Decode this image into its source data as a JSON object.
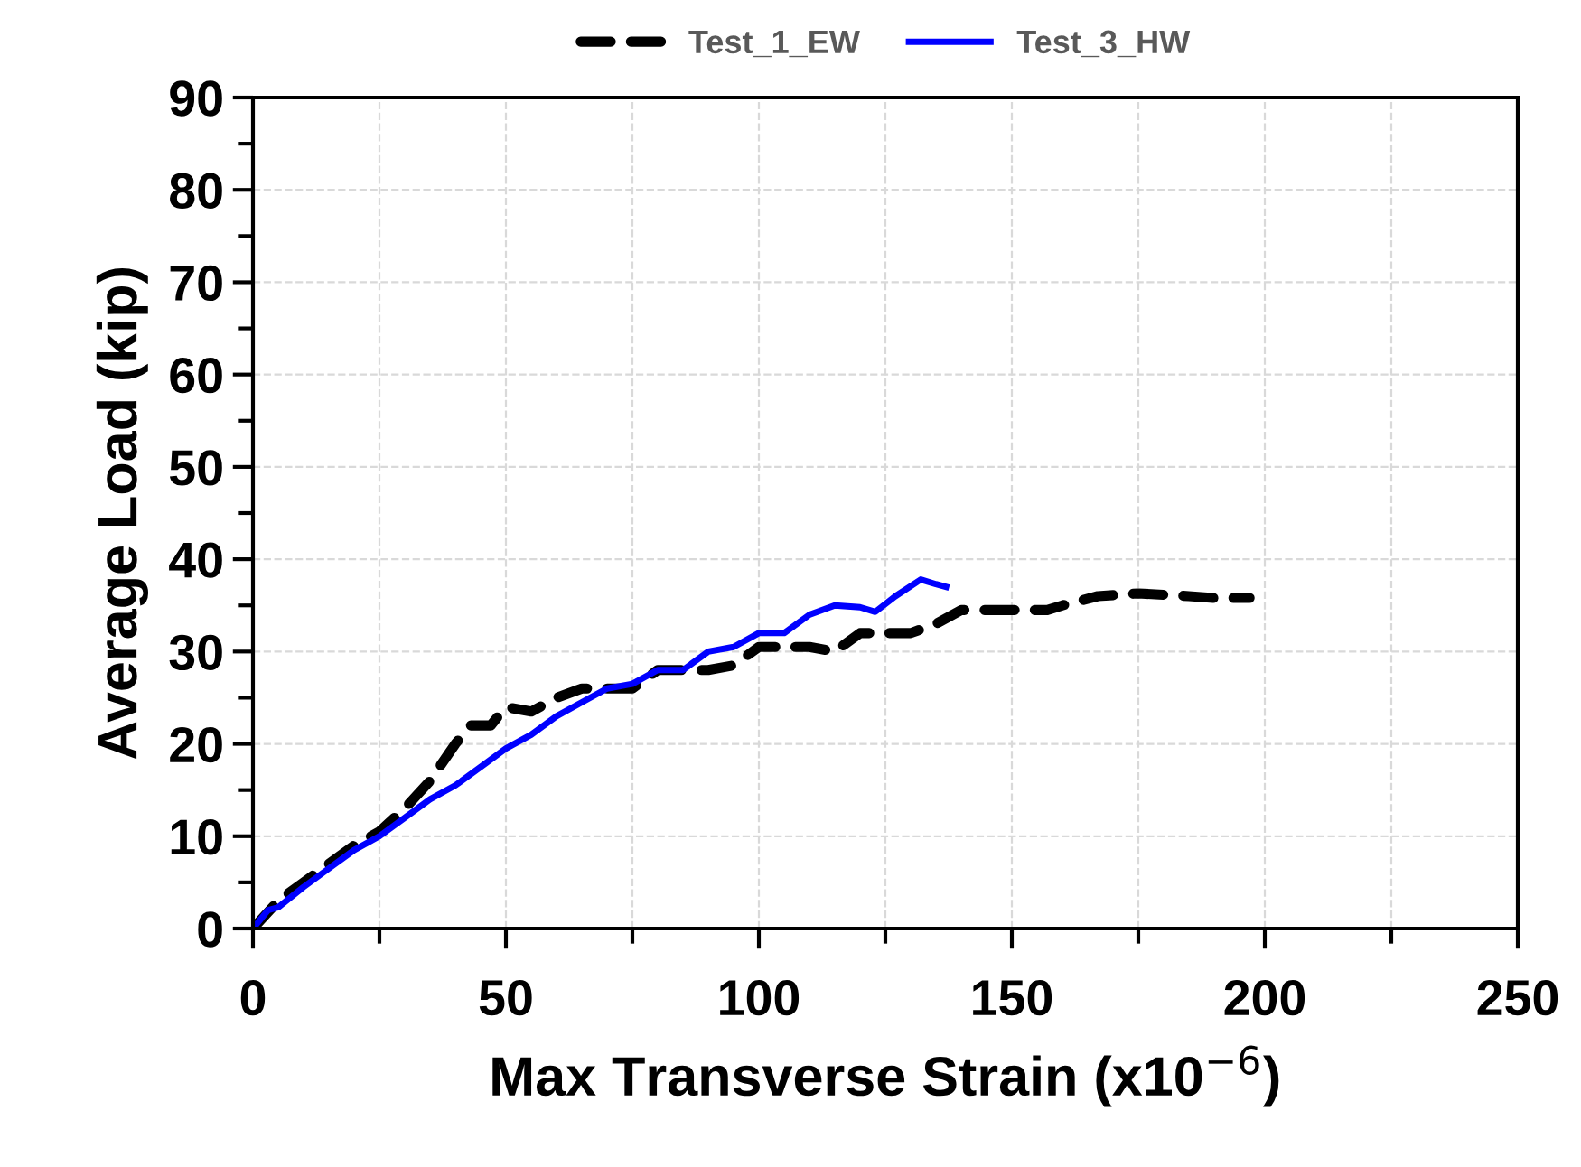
{
  "chart_data": {
    "type": "line",
    "xlabel": "Max Transverse Strain (x10$^{−6}$)",
    "ylabel": "Average Load (kip)",
    "xlim": [
      0,
      250
    ],
    "ylim": [
      0,
      90
    ],
    "xticks": [
      0,
      {
        "value": 25,
        "label": null
      },
      50,
      {
        "value": 75,
        "label": null
      },
      100,
      {
        "value": 125,
        "label": null
      },
      150,
      {
        "value": 175,
        "label": null
      },
      200,
      {
        "value": 225,
        "label": null
      },
      250
    ],
    "yticks": [
      0,
      {
        "value": 5,
        "label": null
      },
      10,
      {
        "value": 15,
        "label": null
      },
      20,
      {
        "value": 25,
        "label": null
      },
      30,
      {
        "value": 35,
        "label": null
      },
      40,
      {
        "value": 45,
        "label": null
      },
      50,
      {
        "value": 55,
        "label": null
      },
      60,
      {
        "value": 65,
        "label": null
      },
      70,
      {
        "value": 75,
        "label": null
      },
      80,
      {
        "value": 85,
        "label": null
      },
      90
    ],
    "grid": true,
    "legend": "top",
    "series": [
      {
        "name": "Test_1_EW",
        "color": "#000000",
        "line_style": "dashed",
        "x": [
          0,
          5,
          10,
          15,
          20,
          25,
          30,
          35,
          40,
          43,
          47,
          50,
          55,
          60,
          65,
          72,
          75,
          80,
          85,
          90,
          95,
          100,
          110,
          115,
          120,
          130,
          135,
          140,
          150,
          157,
          160,
          167,
          175,
          185,
          190,
          197
        ],
        "values": [
          0,
          3,
          5,
          7,
          9,
          10.5,
          13,
          16,
          20,
          22,
          22,
          24,
          23.5,
          25,
          26,
          26,
          26,
          28,
          28,
          28,
          28.5,
          30.5,
          30.5,
          30,
          32,
          32,
          33,
          34.5,
          34.5,
          34.5,
          35,
          36,
          36.3,
          36,
          35.8,
          35.8
        ]
      },
      {
        "name": "Test_3_HW",
        "color": "#0000ff",
        "line_style": "solid",
        "x": [
          0,
          3,
          5,
          10,
          15,
          20,
          25,
          30,
          35,
          40,
          45,
          50,
          55,
          60,
          65,
          70,
          75,
          80,
          85,
          90,
          95,
          100,
          105,
          110,
          115,
          120,
          123,
          127,
          132,
          135,
          137
        ],
        "values": [
          0,
          2,
          2.3,
          4.5,
          6.5,
          8.5,
          10,
          12,
          14,
          15.5,
          17.5,
          19.5,
          21,
          23,
          24.5,
          26,
          26.5,
          28,
          28,
          30,
          30.5,
          32,
          32,
          34,
          35,
          34.8,
          34.3,
          36,
          37.8,
          37.3,
          37
        ]
      }
    ]
  }
}
